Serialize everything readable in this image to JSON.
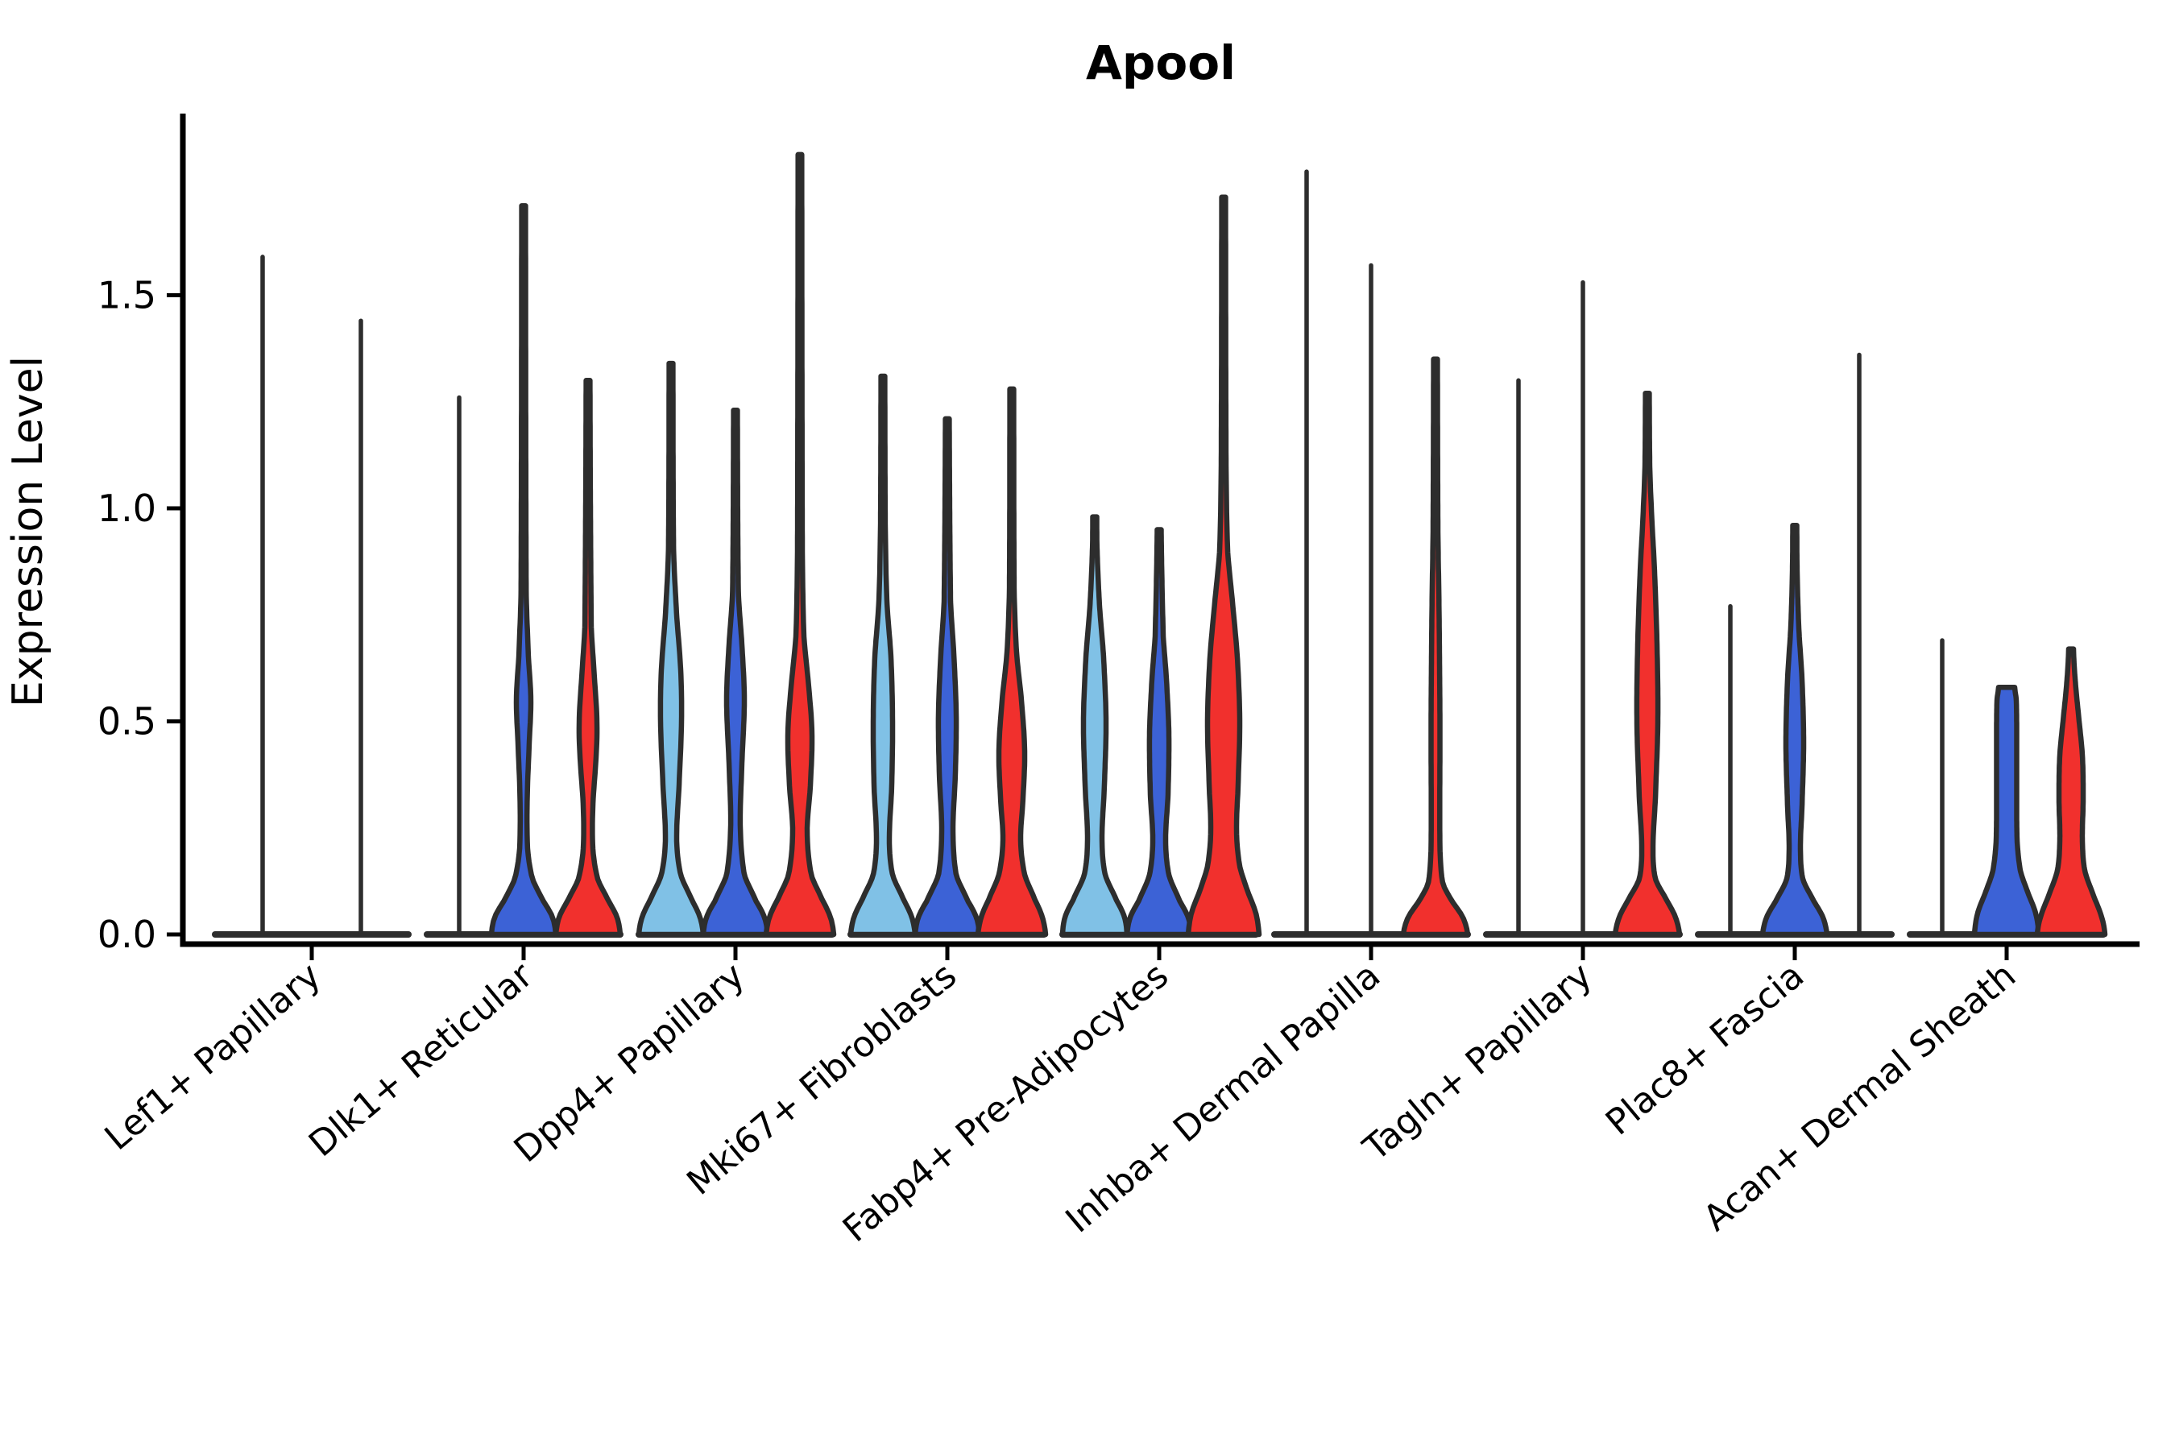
{
  "title": "Apool",
  "ylabel": "Expression Level",
  "y_tick_labels": [
    "0.0",
    "0.5",
    "1.0",
    "1.5"
  ],
  "colors": {
    "light_blue": "#80C1E6",
    "blue": "#3C62D6",
    "red": "#F1302D",
    "outline": "#2D2D2D",
    "axis": "#000000"
  },
  "chart_data": {
    "type": "violin",
    "title": "Apool",
    "ylabel": "Expression Level",
    "ylim": [
      0,
      1.93
    ],
    "y_ticks": [
      0.0,
      0.5,
      1.0,
      1.5
    ],
    "grid": false,
    "legend": "none",
    "conditions": [
      "light_blue",
      "blue",
      "red"
    ],
    "x_categories": [
      "Lef1+ Papillary",
      "Dlk1+ Reticular",
      "Dpp4+ Papillary",
      "Mki67+ Fibroblasts",
      "Fabp4+ Pre-Adipocytes",
      "Inhba+ Dermal Papilla",
      "Tagln+ Papillary",
      "Plac8+ Fascia",
      "Acan+ Dermal Sheath"
    ],
    "groups": [
      {
        "category": "Lef1+ Papillary",
        "violins": [
          {
            "condition": "light_blue",
            "max": 1.59,
            "flat": true,
            "offset": -61
          },
          {
            "condition": "blue",
            "max": 1.44,
            "flat": true,
            "offset": 61
          }
        ]
      },
      {
        "category": "Dlk1+ Reticular",
        "violins": [
          {
            "condition": "light_blue",
            "max": 1.26,
            "flat": true
          },
          {
            "condition": "blue",
            "max": 1.71,
            "flat": false,
            "profile": [
              [
                0,
                40
              ],
              [
                0.04,
                36
              ],
              [
                0.08,
                24
              ],
              [
                0.13,
                11
              ],
              [
                0.2,
                5
              ],
              [
                0.32,
                4.5
              ],
              [
                0.45,
                7
              ],
              [
                0.55,
                9
              ],
              [
                0.65,
                6
              ],
              [
                0.8,
                3.2
              ],
              [
                1.71,
                2.4
              ]
            ]
          },
          {
            "condition": "red",
            "max": 1.3,
            "flat": false,
            "profile": [
              [
                0,
                40
              ],
              [
                0.04,
                36
              ],
              [
                0.08,
                25
              ],
              [
                0.13,
                12
              ],
              [
                0.2,
                6
              ],
              [
                0.3,
                6
              ],
              [
                0.42,
                10
              ],
              [
                0.5,
                11
              ],
              [
                0.6,
                8
              ],
              [
                0.72,
                4
              ],
              [
                1.3,
                2.4
              ]
            ]
          }
        ]
      },
      {
        "category": "Dpp4+ Papillary",
        "violins": [
          {
            "condition": "light_blue",
            "max": 1.34,
            "flat": false,
            "profile": [
              [
                0,
                40
              ],
              [
                0.04,
                36
              ],
              [
                0.08,
                26
              ],
              [
                0.14,
                12
              ],
              [
                0.22,
                7
              ],
              [
                0.35,
                10
              ],
              [
                0.5,
                13
              ],
              [
                0.62,
                12
              ],
              [
                0.75,
                7
              ],
              [
                0.9,
                3.2
              ],
              [
                1.34,
                2.4
              ]
            ]
          },
          {
            "condition": "blue",
            "max": 1.23,
            "flat": false,
            "profile": [
              [
                0,
                40
              ],
              [
                0.04,
                36
              ],
              [
                0.08,
                25
              ],
              [
                0.14,
                11
              ],
              [
                0.25,
                6
              ],
              [
                0.4,
                8
              ],
              [
                0.55,
                11
              ],
              [
                0.68,
                8
              ],
              [
                0.8,
                3.6
              ],
              [
                1.23,
                2.4
              ]
            ]
          },
          {
            "condition": "red",
            "max": 1.83,
            "flat": false,
            "profile": [
              [
                0,
                42
              ],
              [
                0.04,
                38
              ],
              [
                0.08,
                28
              ],
              [
                0.14,
                14
              ],
              [
                0.24,
                9
              ],
              [
                0.35,
                13
              ],
              [
                0.47,
                15
              ],
              [
                0.58,
                11
              ],
              [
                0.7,
                5
              ],
              [
                0.9,
                3
              ],
              [
                1.83,
                2.3
              ]
            ]
          }
        ]
      },
      {
        "category": "Mki67+ Fibroblasts",
        "violins": [
          {
            "condition": "light_blue",
            "max": 1.31,
            "flat": false,
            "profile": [
              [
                0,
                40
              ],
              [
                0.04,
                36
              ],
              [
                0.08,
                26
              ],
              [
                0.14,
                12
              ],
              [
                0.22,
                8
              ],
              [
                0.35,
                11
              ],
              [
                0.5,
                12
              ],
              [
                0.65,
                10
              ],
              [
                0.78,
                5
              ],
              [
                0.95,
                3
              ],
              [
                1.31,
                2.4
              ]
            ]
          },
          {
            "condition": "blue",
            "max": 1.21,
            "flat": false,
            "profile": [
              [
                0,
                40
              ],
              [
                0.04,
                36
              ],
              [
                0.08,
                25
              ],
              [
                0.14,
                11
              ],
              [
                0.24,
                7
              ],
              [
                0.38,
                10
              ],
              [
                0.52,
                11
              ],
              [
                0.66,
                8
              ],
              [
                0.78,
                4
              ],
              [
                1.21,
                2.4
              ]
            ]
          },
          {
            "condition": "red",
            "max": 1.28,
            "flat": false,
            "profile": [
              [
                0,
                42
              ],
              [
                0.04,
                38
              ],
              [
                0.08,
                29
              ],
              [
                0.14,
                16
              ],
              [
                0.22,
                11
              ],
              [
                0.32,
                14
              ],
              [
                0.43,
                16
              ],
              [
                0.55,
                12
              ],
              [
                0.66,
                6
              ],
              [
                0.8,
                3
              ],
              [
                1.28,
                2.4
              ]
            ]
          }
        ]
      },
      {
        "category": "Fabp4+ Pre-Adipocytes",
        "violins": [
          {
            "condition": "light_blue",
            "max": 0.98,
            "flat": false,
            "profile": [
              [
                0,
                40
              ],
              [
                0.04,
                37
              ],
              [
                0.08,
                27
              ],
              [
                0.14,
                13
              ],
              [
                0.22,
                9
              ],
              [
                0.35,
                12
              ],
              [
                0.5,
                14
              ],
              [
                0.65,
                11
              ],
              [
                0.77,
                6
              ],
              [
                0.9,
                3
              ],
              [
                0.98,
                2.5
              ]
            ]
          },
          {
            "condition": "blue",
            "max": 0.95,
            "flat": false,
            "profile": [
              [
                0,
                40
              ],
              [
                0.04,
                36
              ],
              [
                0.08,
                25
              ],
              [
                0.14,
                12
              ],
              [
                0.22,
                8
              ],
              [
                0.33,
                11
              ],
              [
                0.47,
                12
              ],
              [
                0.6,
                9
              ],
              [
                0.7,
                5
              ],
              [
                0.95,
                2.5
              ]
            ]
          },
          {
            "condition": "red",
            "max": 1.73,
            "flat": false,
            "profile": [
              [
                0,
                44
              ],
              [
                0.05,
                40
              ],
              [
                0.1,
                30
              ],
              [
                0.16,
                20
              ],
              [
                0.24,
                16
              ],
              [
                0.35,
                18
              ],
              [
                0.5,
                20
              ],
              [
                0.65,
                17
              ],
              [
                0.78,
                11
              ],
              [
                0.9,
                5
              ],
              [
                1.1,
                3
              ],
              [
                1.73,
                2.4
              ]
            ]
          }
        ]
      },
      {
        "category": "Inhba+ Dermal Papilla",
        "violins": [
          {
            "condition": "light_blue",
            "max": 1.79,
            "flat": true
          },
          {
            "condition": "blue",
            "max": 1.57,
            "flat": true
          },
          {
            "condition": "red",
            "max": 1.35,
            "flat": false,
            "profile": [
              [
                0,
                40
              ],
              [
                0.04,
                34
              ],
              [
                0.08,
                20
              ],
              [
                0.12,
                9
              ],
              [
                0.2,
                5.5
              ],
              [
                0.5,
                5.5
              ],
              [
                0.75,
                4.5
              ],
              [
                0.95,
                3
              ],
              [
                1.35,
                2.4
              ]
            ]
          }
        ]
      },
      {
        "category": "Tagln+ Papillary",
        "violins": [
          {
            "condition": "light_blue",
            "max": 1.3,
            "flat": true
          },
          {
            "condition": "blue",
            "max": 1.53,
            "flat": true
          },
          {
            "condition": "red",
            "max": 1.27,
            "flat": false,
            "profile": [
              [
                0,
                40
              ],
              [
                0.04,
                35
              ],
              [
                0.08,
                24
              ],
              [
                0.13,
                10
              ],
              [
                0.2,
                7
              ],
              [
                0.32,
                10
              ],
              [
                0.5,
                13
              ],
              [
                0.68,
                12
              ],
              [
                0.85,
                9
              ],
              [
                1.0,
                5
              ],
              [
                1.1,
                3
              ],
              [
                1.27,
                2.4
              ]
            ]
          }
        ]
      },
      {
        "category": "Plac8+ Fascia",
        "violins": [
          {
            "condition": "light_blue",
            "max": 0.77,
            "flat": true
          },
          {
            "condition": "blue",
            "max": 0.96,
            "flat": false,
            "profile": [
              [
                0,
                40
              ],
              [
                0.04,
                35
              ],
              [
                0.08,
                23
              ],
              [
                0.13,
                10
              ],
              [
                0.2,
                7
              ],
              [
                0.3,
                9
              ],
              [
                0.45,
                11
              ],
              [
                0.6,
                9
              ],
              [
                0.72,
                5
              ],
              [
                0.85,
                3
              ],
              [
                0.96,
                2.5
              ]
            ]
          },
          {
            "condition": "red",
            "max": 1.36,
            "flat": true
          }
        ]
      },
      {
        "category": "Acan+ Dermal Sheath",
        "violins": [
          {
            "condition": "light_blue",
            "max": 0.69,
            "flat": true
          },
          {
            "condition": "blue",
            "max": 0.58,
            "flat": false,
            "profile": [
              [
                0,
                40
              ],
              [
                0.05,
                36
              ],
              [
                0.1,
                26
              ],
              [
                0.15,
                17
              ],
              [
                0.22,
                13
              ],
              [
                0.35,
                12.5
              ],
              [
                0.48,
                12.5
              ],
              [
                0.55,
                12
              ],
              [
                0.58,
                10
              ]
            ]
          },
          {
            "condition": "red",
            "max": 0.67,
            "flat": false,
            "profile": [
              [
                0,
                42
              ],
              [
                0.04,
                38
              ],
              [
                0.09,
                28
              ],
              [
                0.15,
                17
              ],
              [
                0.22,
                14
              ],
              [
                0.32,
                15
              ],
              [
                0.42,
                14
              ],
              [
                0.52,
                9
              ],
              [
                0.6,
                5
              ],
              [
                0.67,
                3
              ]
            ]
          }
        ]
      }
    ]
  }
}
